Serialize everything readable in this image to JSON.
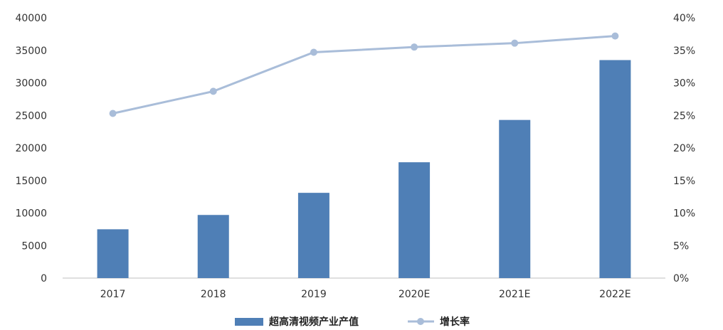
{
  "chart_data": {
    "type": "bar",
    "categories": [
      "2017",
      "2018",
      "2019",
      "2020E",
      "2021E",
      "2022E"
    ],
    "series": [
      {
        "name": "超高清视频产业产值",
        "type": "bar",
        "axis": "left",
        "values": [
          7500,
          9700,
          13100,
          17800,
          24300,
          33500
        ]
      },
      {
        "name": "增长率",
        "type": "line",
        "axis": "right",
        "values": [
          0.253,
          0.287,
          0.347,
          0.355,
          0.361,
          0.372
        ]
      }
    ],
    "y_left": {
      "min": 0,
      "max": 40000,
      "ticks": [
        "0",
        "5000",
        "10000",
        "15000",
        "20000",
        "25000",
        "30000",
        "35000",
        "40000"
      ]
    },
    "y_right": {
      "min": 0,
      "max": 0.4,
      "ticks": [
        "0%",
        "5%",
        "10%",
        "15%",
        "20%",
        "25%",
        "30%",
        "35%",
        "40%"
      ]
    },
    "grid": false,
    "legend_position": "bottom",
    "colors": {
      "bar": "#4f7fb6",
      "line": "#a9bdd9",
      "axis": "#bfbfbf"
    }
  }
}
